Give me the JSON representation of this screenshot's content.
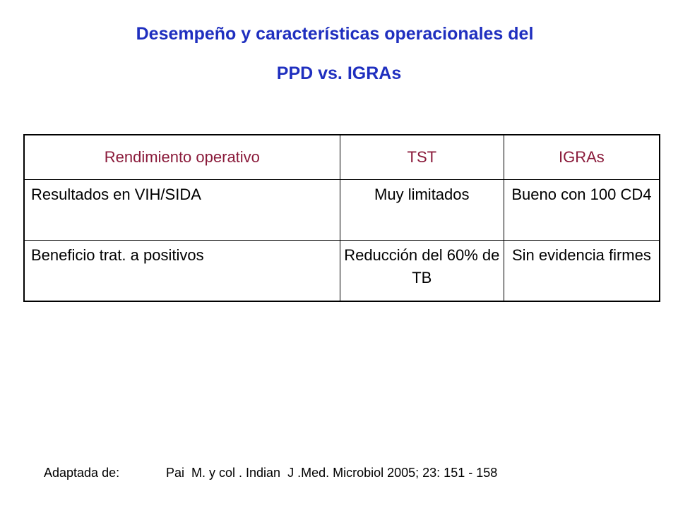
{
  "title": {
    "line1": "Desempeño y características operacionales del",
    "line2": "PPD vs. IGRAs"
  },
  "table": {
    "headers": [
      "Rendimiento operativo",
      "TST",
      "IGRAs"
    ],
    "rows": [
      [
        "Resultados en VIH/SIDA",
        "Muy limitados",
        "Bueno con 100 CD4"
      ],
      [
        "Beneficio trat. a positivos",
        "Reducción del 60% de TB",
        "Sin evidencia firmes"
      ]
    ]
  },
  "citation": {
    "label": "Adaptada de:",
    "reference": "Pai  M. y col . Indian  J .Med. Microbiol 2005; 23: 151 - 158"
  },
  "colors": {
    "title": "#1f2fbf",
    "header_text": "#8a1a3a",
    "border": "#000000"
  }
}
